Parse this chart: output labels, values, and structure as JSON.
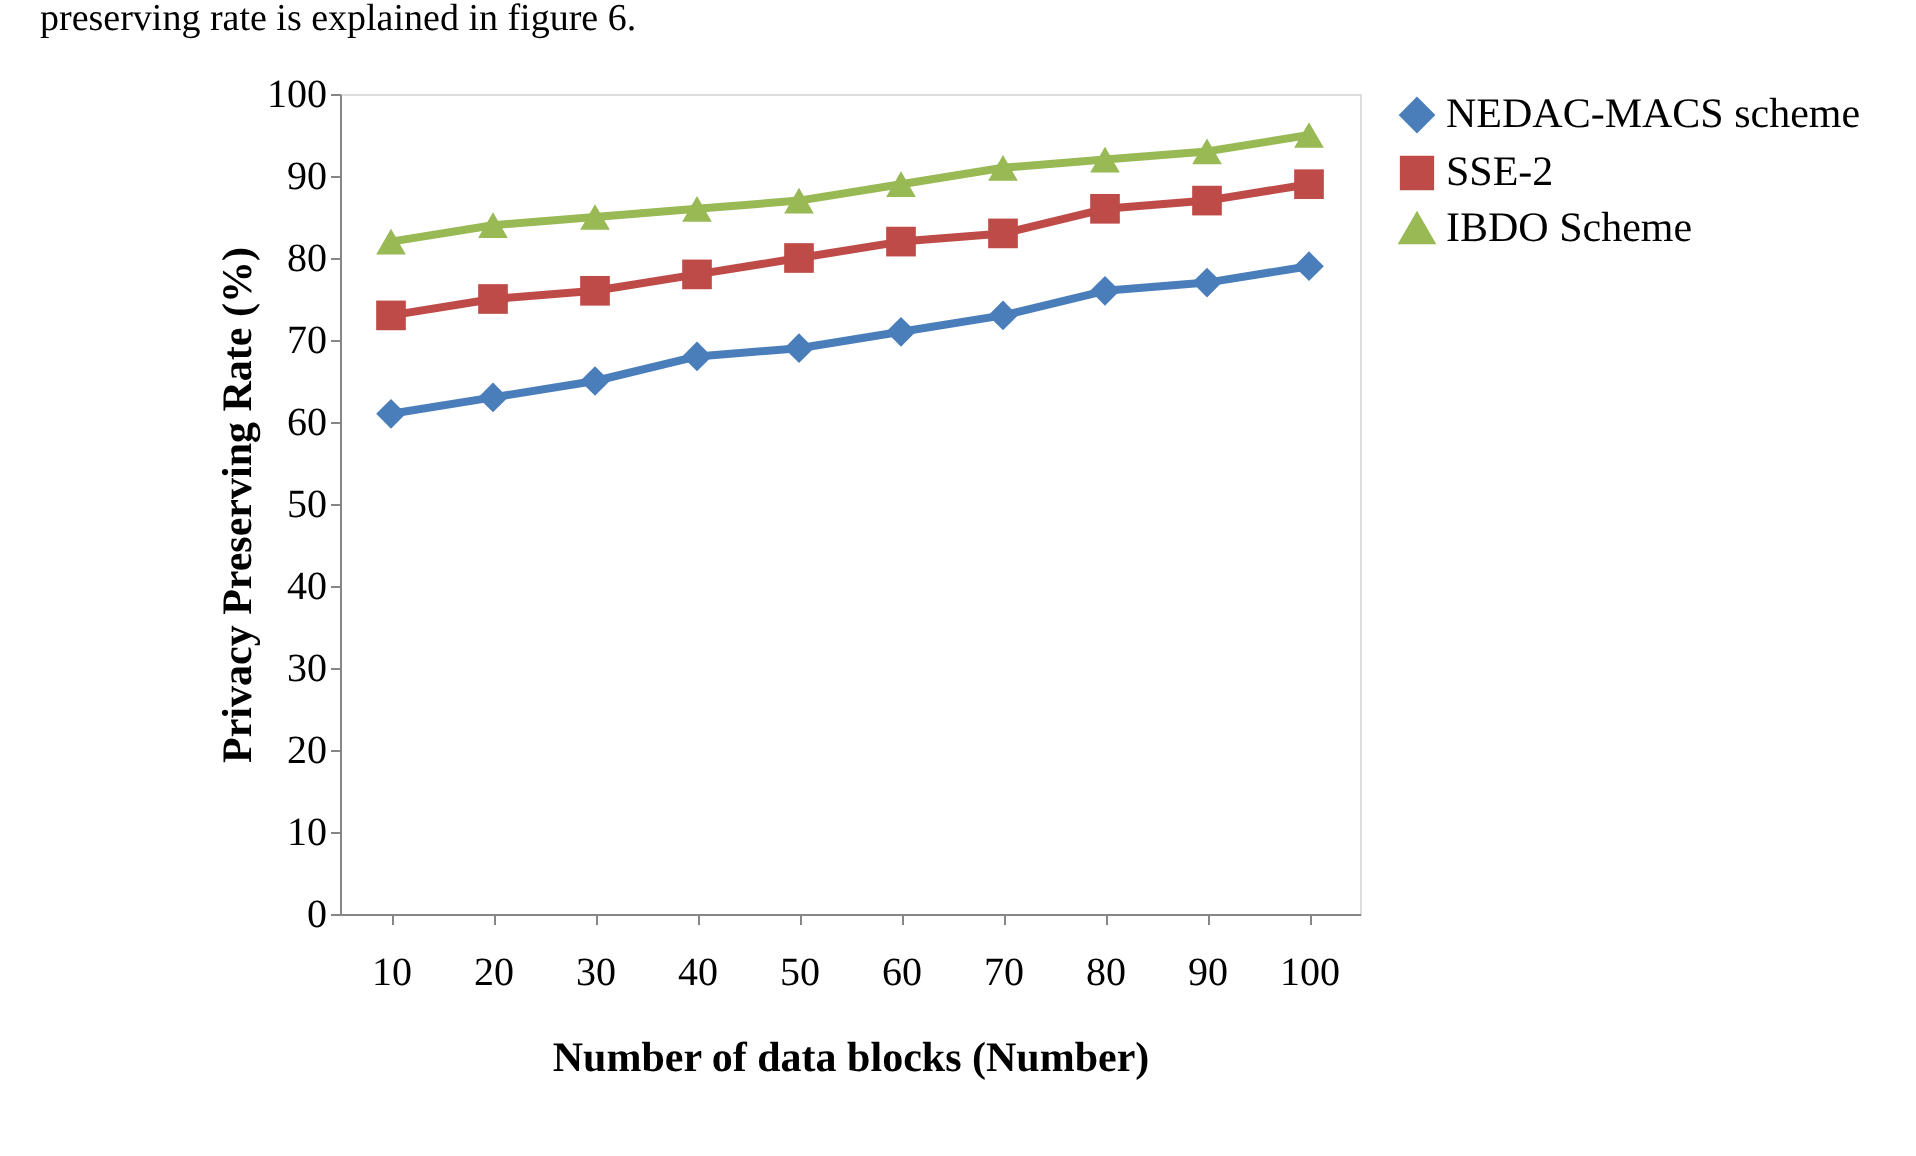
{
  "chart_data": {
    "type": "line",
    "xlabel": "Number of data blocks (Number)",
    "ylabel": "Privacy Preserving Rate (%)",
    "annotations": [
      "preserving rate is explained in figure 6."
    ],
    "categories": [
      "10",
      "20",
      "30",
      "40",
      "50",
      "60",
      "70",
      "80",
      "90",
      "100"
    ],
    "series": [
      {
        "name": "NEDAC-MACS scheme",
        "color": "#4a7ebb",
        "marker": "diamond",
        "values": [
          61,
          63,
          65,
          68,
          69,
          71,
          73,
          76,
          77,
          79
        ]
      },
      {
        "name": "SSE-2",
        "color": "#be4b48",
        "marker": "square",
        "values": [
          73,
          75,
          76,
          78,
          80,
          82,
          83,
          86,
          87,
          89
        ]
      },
      {
        "name": "IBDO Scheme",
        "color": "#98b954",
        "marker": "triangle",
        "values": [
          82,
          84,
          85,
          86,
          87,
          89,
          91,
          92,
          93,
          95
        ]
      }
    ],
    "ylim": [
      0,
      100
    ],
    "yticks": [
      0,
      10,
      20,
      30,
      40,
      50,
      60,
      70,
      80,
      90,
      100
    ],
    "grid": false,
    "legend": "right"
  }
}
